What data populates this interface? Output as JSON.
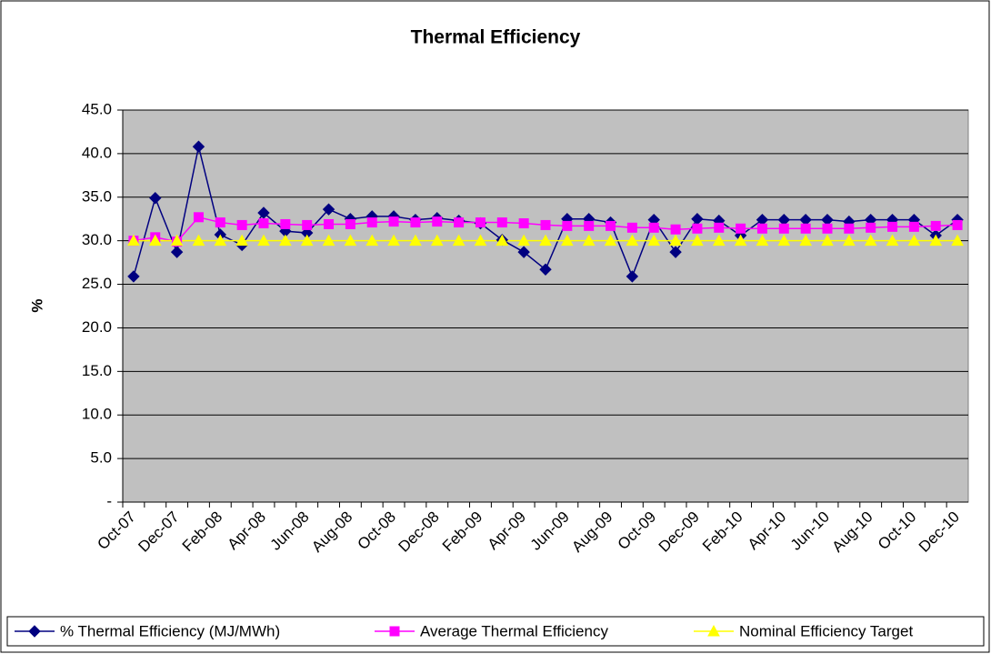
{
  "chart_data": {
    "type": "line",
    "title": "Thermal Efficiency",
    "ylabel": "%",
    "categories": [
      "Oct-07",
      null,
      "Dec-07",
      null,
      "Feb-08",
      null,
      "Apr-08",
      null,
      "Jun-08",
      null,
      "Aug-08",
      null,
      "Oct-08",
      null,
      "Dec-08",
      null,
      "Feb-09",
      null,
      "Apr-09",
      null,
      "Jun-09",
      null,
      "Aug-09",
      null,
      "Oct-09",
      null,
      "Dec-09",
      null,
      "Feb-10",
      null,
      "Apr-10",
      null,
      "Jun-10",
      null,
      "Aug-10",
      null,
      "Oct-10",
      null,
      "Dec-10"
    ],
    "series": [
      {
        "name": "% Thermal Efficiency (MJ/MWh)",
        "color": "#000080",
        "marker": "diamond",
        "values": [
          25.9,
          34.9,
          28.7,
          40.8,
          30.7,
          29.5,
          33.2,
          31.1,
          30.9,
          33.6,
          32.5,
          32.8,
          32.8,
          32.4,
          32.6,
          32.3,
          32.0,
          30.1,
          28.7,
          26.7,
          32.5,
          32.5,
          32.1,
          25.9,
          32.4,
          28.7,
          32.5,
          32.3,
          30.6,
          32.4,
          32.4,
          32.4,
          32.4,
          32.2,
          32.4,
          32.4,
          32.4,
          30.6,
          32.4
        ]
      },
      {
        "name": "Average Thermal Efficiency",
        "color": "#ff00ff",
        "marker": "square",
        "values": [
          30.0,
          30.4,
          29.9,
          32.7,
          32.1,
          31.8,
          32.0,
          31.9,
          31.8,
          31.9,
          31.9,
          32.1,
          32.2,
          32.1,
          32.2,
          32.1,
          32.1,
          32.1,
          32.0,
          31.8,
          31.7,
          31.7,
          31.7,
          31.5,
          31.5,
          31.3,
          31.4,
          31.5,
          31.4,
          31.4,
          31.4,
          31.4,
          31.4,
          31.4,
          31.5,
          31.6,
          31.6,
          31.7,
          31.8
        ]
      },
      {
        "name": "Nominal Efficiency Target",
        "color": "#ffff00",
        "marker": "triangle",
        "values": [
          30,
          30,
          30,
          30,
          30,
          30,
          30,
          30,
          30,
          30,
          30,
          30,
          30,
          30,
          30,
          30,
          30,
          30,
          30,
          30,
          30,
          30,
          30,
          30,
          30,
          30,
          30,
          30,
          30,
          30,
          30,
          30,
          30,
          30,
          30,
          30,
          30,
          30,
          30
        ]
      }
    ],
    "ylim": [
      0,
      45
    ],
    "yticks": [
      {
        "value": 0,
        "label": "-"
      },
      {
        "value": 5,
        "label": "5.0"
      },
      {
        "value": 10,
        "label": "10.0"
      },
      {
        "value": 15,
        "label": "15.0"
      },
      {
        "value": 20,
        "label": "20.0"
      },
      {
        "value": 25,
        "label": "25.0"
      },
      {
        "value": 30,
        "label": "30.0"
      },
      {
        "value": 35,
        "label": "35.0"
      },
      {
        "value": 40,
        "label": "40.0"
      },
      {
        "value": 45,
        "label": "45.0"
      }
    ],
    "grid": true,
    "plot_background": "#c0c0c0",
    "legend": "bottom"
  }
}
